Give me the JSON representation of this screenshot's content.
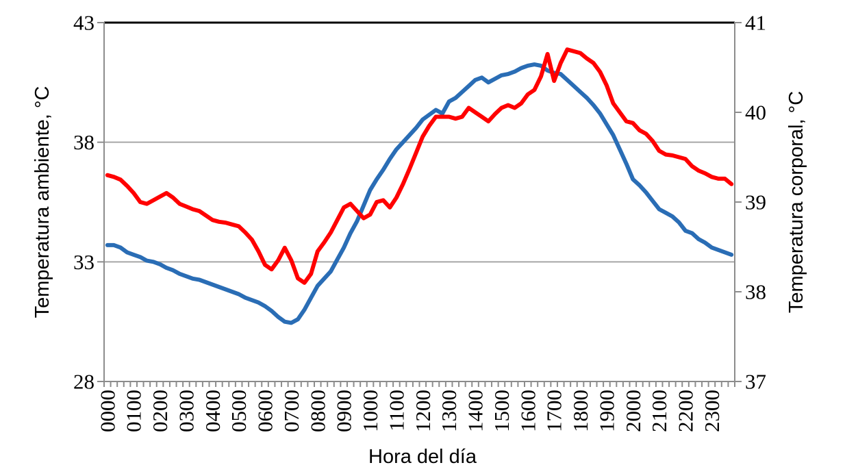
{
  "page": {
    "background": "#FFFFFF"
  },
  "chart_data": {
    "type": "line",
    "title": "",
    "xlabel": "Hora del día",
    "x_tick_labels": [
      "0000",
      "0100",
      "0200",
      "0300",
      "0400",
      "0500",
      "0600",
      "0700",
      "0800",
      "0900",
      "1000",
      "1100",
      "1200",
      "1300",
      "1400",
      "1500",
      "1600",
      "1700",
      "1800",
      "1900",
      "2000",
      "2100",
      "2200",
      "2300"
    ],
    "x_interval_minutes": 15,
    "x_minor_ticks_per_hour": 4,
    "left_axis": {
      "label": "Temperatura ambiente, °C",
      "min": 28,
      "max": 43,
      "ticks": [
        43,
        38,
        33,
        28
      ]
    },
    "right_axis": {
      "label": "Temperatura corporal, °C",
      "min": 37,
      "max": 41,
      "ticks": [
        41,
        40,
        39,
        38,
        37
      ]
    },
    "gridlines": {
      "axis": "left",
      "values": [
        38,
        33
      ]
    },
    "legend_position": "none",
    "series": [
      {
        "name": "blue-line",
        "axis": "left",
        "color": "#2A6DB5",
        "values": [
          33.7,
          33.7,
          33.6,
          33.4,
          33.3,
          33.2,
          33.05,
          33.0,
          32.9,
          32.75,
          32.65,
          32.5,
          32.4,
          32.3,
          32.25,
          32.15,
          32.05,
          31.95,
          31.85,
          31.75,
          31.65,
          31.5,
          31.4,
          31.3,
          31.15,
          30.95,
          30.7,
          30.5,
          30.45,
          30.6,
          31.0,
          31.5,
          32.0,
          32.3,
          32.6,
          33.1,
          33.6,
          34.2,
          34.7,
          35.35,
          36.0,
          36.45,
          36.85,
          37.3,
          37.7,
          38.0,
          38.3,
          38.6,
          38.95,
          39.15,
          39.35,
          39.2,
          39.7,
          39.85,
          40.1,
          40.35,
          40.6,
          40.7,
          40.5,
          40.65,
          40.8,
          40.85,
          40.95,
          41.1,
          41.2,
          41.25,
          41.2,
          41.0,
          40.9,
          40.85,
          40.6,
          40.35,
          40.1,
          39.85,
          39.55,
          39.2,
          38.75,
          38.3,
          37.7,
          37.1,
          36.45,
          36.2,
          35.9,
          35.55,
          35.2,
          35.05,
          34.9,
          34.65,
          34.3,
          34.2,
          33.95,
          33.8,
          33.6,
          33.5,
          33.4,
          33.3
        ]
      },
      {
        "name": "red-line",
        "axis": "right",
        "color": "#FF0000",
        "values": [
          39.3,
          39.28,
          39.25,
          39.18,
          39.1,
          39.0,
          38.98,
          39.02,
          39.06,
          39.1,
          39.05,
          38.98,
          38.95,
          38.92,
          38.9,
          38.85,
          38.8,
          38.78,
          38.77,
          38.75,
          38.73,
          38.66,
          38.58,
          38.45,
          38.3,
          38.25,
          38.35,
          38.49,
          38.35,
          38.15,
          38.1,
          38.2,
          38.45,
          38.55,
          38.66,
          38.8,
          38.94,
          38.98,
          38.9,
          38.82,
          38.86,
          39.0,
          39.02,
          38.94,
          39.05,
          39.2,
          39.37,
          39.55,
          39.73,
          39.85,
          39.95,
          39.95,
          39.95,
          39.93,
          39.95,
          40.05,
          40.0,
          39.95,
          39.9,
          39.98,
          40.05,
          40.08,
          40.05,
          40.1,
          40.2,
          40.25,
          40.4,
          40.65,
          40.35,
          40.55,
          40.7,
          40.68,
          40.66,
          40.6,
          40.55,
          40.45,
          40.3,
          40.1,
          40.0,
          39.9,
          39.88,
          39.8,
          39.76,
          39.68,
          39.57,
          39.53,
          39.52,
          39.5,
          39.48,
          39.4,
          39.35,
          39.32,
          39.28,
          39.26,
          39.26,
          39.2
        ]
      }
    ]
  },
  "colors": {
    "gridline": "#A6A6A6",
    "axis_line": "#8C8C8C",
    "top_border": "#000000",
    "text": "#000000",
    "background": "#FFFFFF"
  }
}
